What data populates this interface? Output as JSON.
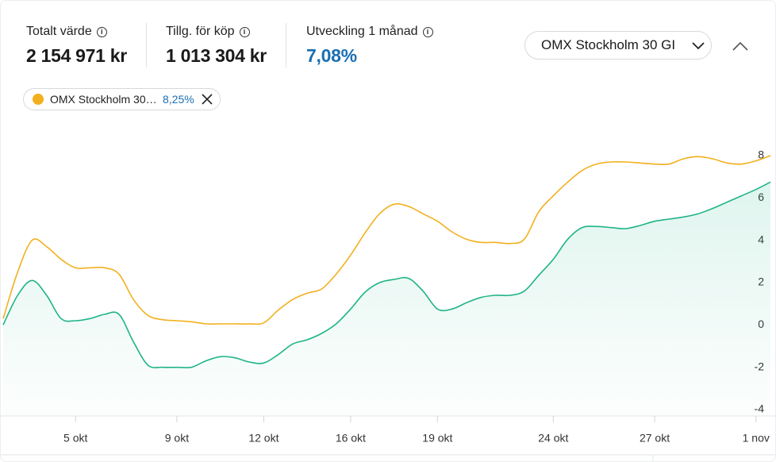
{
  "stats": [
    {
      "label": "Totalt värde",
      "value": "2 154 971 kr"
    },
    {
      "label": "Tillg. för köp",
      "value": "1 013 304 kr"
    },
    {
      "label": "Utveckling 1 månad",
      "value": "7,08%"
    }
  ],
  "chart_data": {
    "type": "line",
    "categories": [
      null,
      null,
      null,
      null,
      null,
      "5 okt",
      null,
      null,
      null,
      null,
      null,
      null,
      "9 okt",
      null,
      null,
      null,
      null,
      null,
      "12 okt",
      null,
      null,
      null,
      null,
      null,
      "16 okt",
      null,
      null,
      null,
      null,
      null,
      "19 okt",
      null,
      null,
      null,
      null,
      null,
      null,
      null,
      "24 okt",
      null,
      null,
      null,
      null,
      null,
      null,
      "27 okt",
      null,
      null,
      null,
      null,
      null,
      null,
      "1 nov",
      null
    ],
    "series": [
      {
        "name": "OMX Stockholm 30 GI",
        "change": "8,25%",
        "color": "#f2b01e",
        "values": [
          0.3,
          2.5,
          4.0,
          3.7,
          3.1,
          2.7,
          2.7,
          2.7,
          2.4,
          1.2,
          0.45,
          0.25,
          0.2,
          0.15,
          0.05,
          0.05,
          0.05,
          0.05,
          0.1,
          0.7,
          1.2,
          1.5,
          1.7,
          2.4,
          3.3,
          4.35,
          5.25,
          5.7,
          5.6,
          5.25,
          4.9,
          4.4,
          4.05,
          3.9,
          3.9,
          3.85,
          4.05,
          5.35,
          6.1,
          6.75,
          7.3,
          7.6,
          7.7,
          7.7,
          7.65,
          7.6,
          7.6,
          7.85,
          7.95,
          7.85,
          7.65,
          7.6,
          7.75,
          8.0
        ]
      },
      {
        "color": "#1fb488",
        "values": [
          0,
          1.4,
          2.1,
          1.4,
          0.3,
          0.2,
          0.3,
          0.5,
          0.5,
          -0.8,
          -1.9,
          -2.0,
          -2.0,
          -2.0,
          -1.7,
          -1.5,
          -1.55,
          -1.75,
          -1.8,
          -1.4,
          -0.9,
          -0.7,
          -0.4,
          0.05,
          0.75,
          1.55,
          2.0,
          2.15,
          2.2,
          1.6,
          0.75,
          0.75,
          1.05,
          1.3,
          1.4,
          1.4,
          1.6,
          2.35,
          3.1,
          4.05,
          4.6,
          4.65,
          4.6,
          4.55,
          4.7,
          4.9,
          5.0,
          5.1,
          5.25,
          5.5,
          5.8,
          6.1,
          6.4,
          6.75
        ]
      }
    ],
    "ylim": [
      -4.3,
      9.2
    ],
    "yticks": [
      8,
      6,
      4,
      2,
      0,
      -2,
      -4
    ],
    "grid": false
  }
}
